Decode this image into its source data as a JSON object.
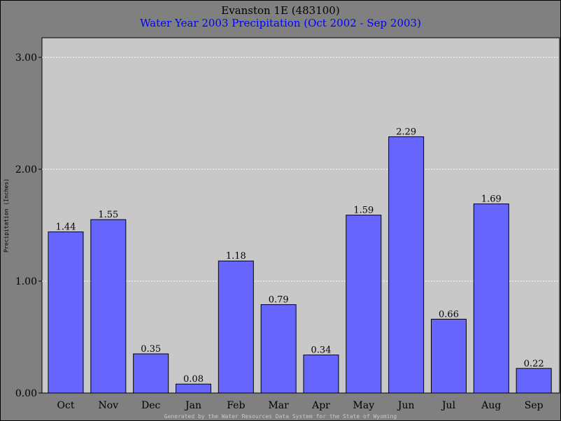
{
  "header": {
    "title": "Evanston 1E (483100)",
    "subtitle": "Water Year 2003 Precipitation (Oct 2002 - Sep 2003)"
  },
  "footer": {
    "text": "Generated by the Water Resources Data System for the State of Wyoming"
  },
  "colors": {
    "background": "#808080",
    "plot_area": "#c8c8c8",
    "bar_fill": "#6666ff",
    "subtitle": "#0000ff"
  },
  "chart_data": {
    "type": "bar",
    "title": "Evanston 1E (483100)",
    "subtitle": "Water Year 2003 Precipitation (Oct 2002 - Sep 2003)",
    "xlabel": "",
    "ylabel": "Precipitation (Inches)",
    "categories": [
      "Oct",
      "Nov",
      "Dec",
      "Jan",
      "Feb",
      "Mar",
      "Apr",
      "May",
      "Jun",
      "Jul",
      "Aug",
      "Sep"
    ],
    "values": [
      1.44,
      1.55,
      0.35,
      0.08,
      1.18,
      0.79,
      0.34,
      1.59,
      2.29,
      0.66,
      1.69,
      0.22
    ],
    "value_labels": [
      "1.44",
      "1.55",
      "0.35",
      "0.08",
      "1.18",
      "0.79",
      "0.34",
      "1.59",
      "2.29",
      "0.66",
      "1.69",
      "0.22"
    ],
    "ylim": [
      0,
      3.0
    ],
    "yticks": [
      0,
      1,
      2,
      3
    ],
    "ytick_labels": [
      "0.00",
      "1.00",
      "2.00",
      "3.00"
    ],
    "grid": "horizontal dotted",
    "legend": "none"
  }
}
